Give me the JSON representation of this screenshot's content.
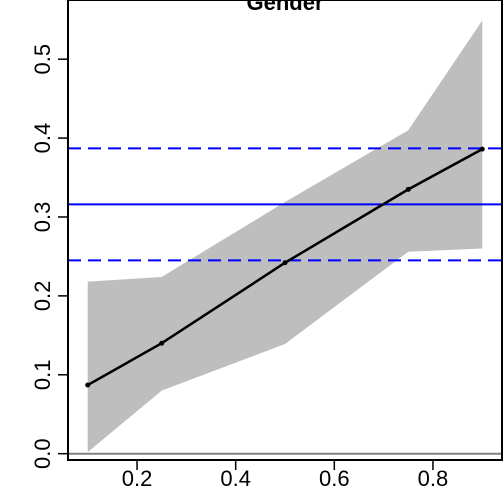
{
  "chart_data": {
    "type": "line",
    "title": "Gender",
    "xlabel": "",
    "ylabel": "",
    "xlim": [
      0.06,
      0.94
    ],
    "ylim": [
      -0.008,
      0.575
    ],
    "x_ticks": [
      0.2,
      0.4,
      0.6,
      0.8
    ],
    "x_tick_labels": [
      "0.2",
      "0.4",
      "0.6",
      "0.8"
    ],
    "y_ticks": [
      0.0,
      0.1,
      0.2,
      0.3,
      0.4,
      0.5
    ],
    "y_tick_labels": [
      "0.0",
      "0.1",
      "0.2",
      "0.3",
      "0.4",
      "0.5"
    ],
    "grid": false,
    "series": [
      {
        "type": "line",
        "color": "#000000",
        "x": [
          0.1,
          0.25,
          0.5,
          0.75,
          0.9
        ],
        "y": [
          0.087,
          0.14,
          0.242,
          0.335,
          0.386
        ]
      }
    ],
    "confidence_band": {
      "color": "#bebebe",
      "x": [
        0.1,
        0.25,
        0.5,
        0.75,
        0.9
      ],
      "lower": [
        0.002,
        0.08,
        0.139,
        0.256,
        0.26
      ],
      "upper": [
        0.218,
        0.224,
        0.319,
        0.41,
        0.549
      ]
    },
    "reference_lines": [
      {
        "y": 0.316,
        "style": "solid",
        "color": "#0000ff"
      },
      {
        "y": 0.387,
        "style": "dashed",
        "color": "#0000ff"
      },
      {
        "y": 0.245,
        "style": "dashed",
        "color": "#0000ff"
      },
      {
        "y": 0.0,
        "style": "solid",
        "color": "#808080"
      }
    ]
  }
}
